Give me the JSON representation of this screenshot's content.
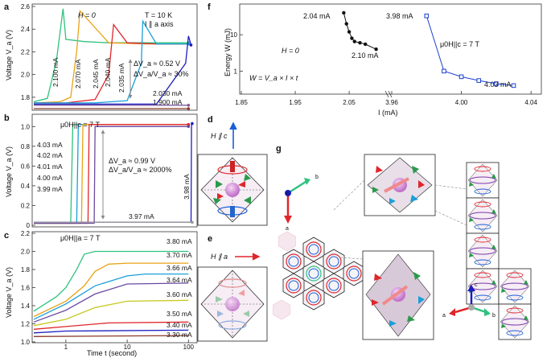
{
  "panels": {
    "a": {
      "letter": "a",
      "ylabel": "Voltage V_a (V)",
      "ylim": [
        1.7,
        2.6
      ],
      "yticks": [
        "1.8",
        "2.0",
        "2.2",
        "2.4",
        "2.6"
      ],
      "field": "H = 0",
      "temp": "T = 10 K",
      "axis": "I ∥ a axis",
      "delta_v": "ΔV_a ≈ 0.52 V",
      "ratio": "ΔV_a/V_a ≈ 30%",
      "curve_labels": [
        "2.100 mA",
        "2.070 mA",
        "2.045 mA",
        "2.040 mA",
        "2.035 mA",
        "2.030 mA",
        "1.900 mA"
      ],
      "colors": [
        "#2ec27e",
        "#e8a317",
        "#e0262b",
        "#1a9fd8",
        "#1c1cbf",
        "#7a5a9e",
        "#8a3a2a"
      ]
    },
    "b": {
      "letter": "b",
      "ylabel": "Voltage V_a (V)",
      "ylim": [
        0,
        1.1
      ],
      "yticks": [
        "0",
        "0.2",
        "0.4",
        "0.6",
        "0.8",
        "1.0"
      ],
      "field": "μ0H||c = 7 T",
      "delta_v": "ΔV_a ≈ 0.99 V",
      "ratio": "ΔV_a/V_a ≈ 2000%",
      "curve_labels": [
        "4.03 mA",
        "4.02 mA",
        "4.01 mA",
        "4.00 mA",
        "3.99 mA",
        "3.98 mA",
        "3.97 mA"
      ],
      "colors": [
        "#2ec27e",
        "#1a9fd8",
        "#e8a317",
        "#e0262b",
        "#6a4aa0",
        "#1c1cbf",
        "#9a9a9a"
      ]
    },
    "c": {
      "letter": "c",
      "ylabel": "Voltage V_a (V)",
      "xlabel": "Time t (second)",
      "ylim": [
        1.0,
        2.2
      ],
      "yticks": [
        "1.0",
        "1.2",
        "1.4",
        "1.6",
        "1.8",
        "2.0",
        "2.2"
      ],
      "xticks": [
        "1",
        "10",
        "100"
      ],
      "field": "μ0H||a = 7 T",
      "curve_labels": [
        "3.80 mA",
        "3.70 mA",
        "3.66 mA",
        "3.64 mA",
        "3.60 mA",
        "3.50 mA",
        "3.40 mA",
        "3.30 mA"
      ],
      "colors": [
        "#2ec27e",
        "#e8a317",
        "#1a9fd8",
        "#6a4aa0",
        "#c8c820",
        "#e0262b",
        "#1c1cbf",
        "#8a3a2a"
      ]
    },
    "f": {
      "letter": "f",
      "ylabel": "Energy W (mJ)",
      "xlabel": "I (mA)",
      "yticks": [
        "1",
        "10"
      ],
      "xticks_left": [
        "1.85",
        "1.95",
        "2.05"
      ],
      "xticks_right": [
        "3.96",
        "4.00",
        "4.04"
      ],
      "field_left": "H = 0",
      "field_right": "μ0H||c = 7 T",
      "formula": "W = V_a × I × t",
      "labels": [
        "2.04 mA",
        "2.10 mA",
        "3.98 mA",
        "4.03 mA"
      ]
    },
    "d": {
      "letter": "d",
      "field": "H ∥ c"
    },
    "e": {
      "letter": "e",
      "field": "H ∥ a"
    },
    "g": {
      "letter": "g",
      "axes": [
        "a",
        "b",
        "c"
      ]
    }
  },
  "chart_data": [
    {
      "type": "line",
      "title": "",
      "xlabel": "",
      "ylabel": "Voltage V_a (V)",
      "ylim": [
        1.7,
        2.6
      ],
      "series": [
        {
          "name": "2.100 mA",
          "x": [
            0.3,
            0.5,
            0.7,
            0.9,
            1.0,
            2,
            5,
            20,
            100
          ],
          "values": [
            1.76,
            1.79,
            2.12,
            2.58,
            2.31,
            2.29,
            2.28,
            2.28,
            2.28
          ]
        },
        {
          "name": "2.070 mA",
          "x": [
            0.3,
            0.8,
            1.2,
            1.5,
            1.7,
            5,
            20,
            100
          ],
          "values": [
            1.75,
            1.76,
            1.8,
            2.2,
            2.56,
            2.28,
            2.27,
            2.27
          ]
        },
        {
          "name": "2.045 mA",
          "x": [
            0.3,
            1,
            3,
            5,
            6,
            10,
            30,
            100
          ],
          "values": [
            1.75,
            1.75,
            1.78,
            2.0,
            2.44,
            2.28,
            2.27,
            2.27
          ]
        },
        {
          "name": "2.040 mA",
          "x": [
            0.3,
            3,
            10,
            17,
            18,
            30,
            100
          ],
          "values": [
            1.75,
            1.75,
            1.77,
            2.1,
            2.47,
            2.27,
            2.27
          ]
        },
        {
          "name": "2.035 mA",
          "x": [
            0.3,
            5,
            30,
            90,
            100,
            110
          ],
          "values": [
            1.74,
            1.74,
            1.74,
            2.1,
            2.34,
            2.26
          ]
        },
        {
          "name": "2.030 mA",
          "x": [
            0.3,
            100
          ],
          "values": [
            1.73,
            1.73
          ]
        },
        {
          "name": "1.900 mA",
          "x": [
            0.3,
            100
          ],
          "values": [
            1.7,
            1.7
          ]
        }
      ]
    },
    {
      "type": "line",
      "ylabel": "Voltage V_a (V)",
      "ylim": [
        0,
        1.1
      ],
      "series": [
        {
          "name": "4.03 mA",
          "x": [
            0.3,
            1.2,
            1.3,
            100
          ],
          "values": [
            0.02,
            0.02,
            1.02,
            1.02
          ]
        },
        {
          "name": "4.02 mA",
          "x": [
            0.3,
            1.5,
            1.6,
            100
          ],
          "values": [
            0.02,
            0.02,
            1.02,
            1.02
          ]
        },
        {
          "name": "4.01 mA",
          "x": [
            0.3,
            1.8,
            1.9,
            100
          ],
          "values": [
            0.02,
            0.02,
            1.02,
            1.02
          ]
        },
        {
          "name": "4.00 mA",
          "x": [
            0.3,
            2.3,
            2.4,
            100
          ],
          "values": [
            0.02,
            0.02,
            1.02,
            1.02
          ]
        },
        {
          "name": "3.99 mA",
          "x": [
            0.3,
            2.9,
            3.0,
            100
          ],
          "values": [
            0.02,
            0.02,
            1.0,
            1.0
          ]
        },
        {
          "name": "3.98 mA",
          "x": [
            0.3,
            110,
            112,
            115
          ],
          "values": [
            0.03,
            0.03,
            1.03,
            1.03
          ]
        },
        {
          "name": "3.97 mA",
          "x": [
            0.3,
            115
          ],
          "values": [
            0.03,
            0.03
          ]
        }
      ]
    },
    {
      "type": "line",
      "xlabel": "Time t (second)",
      "ylabel": "Voltage V_a (V)",
      "ylim": [
        1.0,
        2.2
      ],
      "series": [
        {
          "name": "3.80 mA",
          "x": [
            0.3,
            0.7,
            1,
            1.5,
            2,
            3,
            10,
            100
          ],
          "values": [
            1.34,
            1.5,
            1.6,
            1.8,
            1.97,
            2.0,
            2.0,
            2.0
          ]
        },
        {
          "name": "3.70 mA",
          "x": [
            0.3,
            1,
            2,
            3,
            5,
            10,
            100
          ],
          "values": [
            1.28,
            1.45,
            1.62,
            1.78,
            1.86,
            1.87,
            1.87
          ]
        },
        {
          "name": "3.66 mA",
          "x": [
            0.3,
            1,
            3,
            10,
            20,
            100
          ],
          "values": [
            1.25,
            1.42,
            1.62,
            1.73,
            1.75,
            1.75
          ]
        },
        {
          "name": "3.64 mA",
          "x": [
            0.3,
            1,
            3,
            10,
            100
          ],
          "values": [
            1.22,
            1.35,
            1.53,
            1.64,
            1.65
          ]
        },
        {
          "name": "3.60 mA",
          "x": [
            0.3,
            1,
            3,
            10,
            100
          ],
          "values": [
            1.18,
            1.25,
            1.38,
            1.45,
            1.46
          ]
        },
        {
          "name": "3.50 mA",
          "x": [
            0.3,
            1,
            5,
            100
          ],
          "values": [
            1.14,
            1.17,
            1.21,
            1.22
          ]
        },
        {
          "name": "3.40 mA",
          "x": [
            0.3,
            1,
            100
          ],
          "values": [
            1.1,
            1.12,
            1.13
          ]
        },
        {
          "name": "3.30 mA",
          "x": [
            0.3,
            100
          ],
          "values": [
            1.06,
            1.07
          ]
        }
      ]
    },
    {
      "type": "scatter",
      "xlabel": "I (mA)",
      "ylabel": "Energy W (mJ)",
      "series": [
        {
          "name": "H = 0",
          "x": [
            2.04,
            2.045,
            2.05,
            2.055,
            2.06,
            2.07,
            2.08,
            2.1
          ],
          "values": [
            40,
            20,
            12,
            8,
            6.5,
            6,
            5.5,
            4
          ]
        },
        {
          "name": "μ0H||c = 7 T",
          "x": [
            3.98,
            3.99,
            4.0,
            4.01,
            4.02,
            4.03
          ],
          "values": [
            33,
            1.0,
            0.7,
            0.55,
            0.45,
            0.4
          ]
        }
      ]
    }
  ]
}
